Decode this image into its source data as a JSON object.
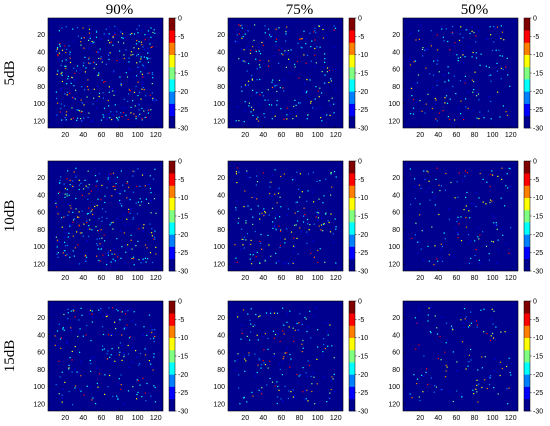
{
  "column_titles": [
    "90%",
    "75%",
    "50%"
  ],
  "row_titles": [
    "5dB",
    "10dB",
    "15dB"
  ],
  "colors": {
    "background_field": "#00008f",
    "colormap": [
      "#00008f",
      "#0000ff",
      "#0080ff",
      "#00ffff",
      "#80ff80",
      "#ffff00",
      "#ff8000",
      "#ff0000",
      "#800000"
    ]
  },
  "chart_data": {
    "type": "heatmap",
    "layout": "3x3 grid",
    "colormap": "jet",
    "columns": [
      "90%",
      "75%",
      "50%"
    ],
    "rows": [
      "5dB",
      "10dB",
      "15dB"
    ],
    "x_axis": {
      "range": [
        1,
        128
      ],
      "ticks": [
        20,
        40,
        60,
        80,
        100,
        120
      ]
    },
    "y_axis": {
      "range": [
        1,
        128
      ],
      "ticks": [
        20,
        40,
        60,
        80,
        100,
        120
      ],
      "reversed": true
    },
    "colorbar": {
      "range": [
        -30,
        0
      ],
      "ticks": [
        0,
        -5,
        -10,
        -15,
        -20,
        -25,
        -30
      ]
    },
    "point_density": {
      "5dB": {
        "90%": 0.06,
        "75%": 0.04,
        "50%": 0.03
      },
      "10dB": {
        "90%": 0.05,
        "75%": 0.035,
        "50%": 0.025
      },
      "15dB": {
        "90%": 0.035,
        "75%": 0.03,
        "50%": 0.022
      }
    }
  }
}
